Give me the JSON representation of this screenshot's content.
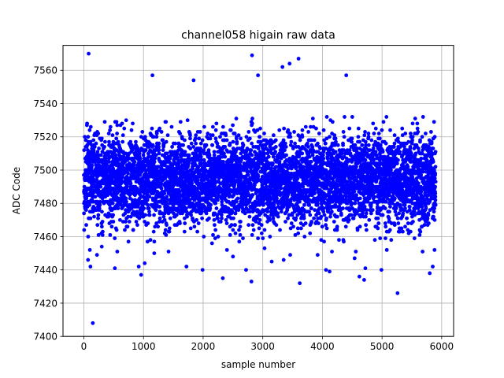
{
  "chart_data": {
    "type": "scatter",
    "title": "channel058 higain raw data",
    "xlabel": "sample number",
    "ylabel": "ADC Code",
    "xlim": [
      -350,
      6200
    ],
    "ylim": [
      7400,
      7575
    ],
    "xticks": [
      0,
      1000,
      2000,
      3000,
      4000,
      5000,
      6000
    ],
    "yticks": [
      7400,
      7420,
      7440,
      7460,
      7480,
      7500,
      7520,
      7540,
      7560
    ],
    "grid": true,
    "marker_color": "#0000ff",
    "series": [
      {
        "points": [
          [
            80,
            7570
          ],
          [
            150,
            7408
          ],
          [
            2820,
            7569
          ],
          [
            3600,
            7567
          ],
          [
            3330,
            7562
          ],
          [
            3450,
            7564
          ],
          [
            1150,
            7557
          ],
          [
            1840,
            7554
          ],
          [
            2920,
            7557
          ],
          [
            4400,
            7557
          ],
          [
            5260,
            7426
          ],
          [
            3620,
            7432
          ],
          [
            2810,
            7433
          ],
          [
            2330,
            7435
          ],
          [
            4700,
            7434
          ],
          [
            4620,
            7436
          ],
          [
            5800,
            7438
          ],
          [
            960,
            7437
          ],
          [
            1990,
            7440
          ],
          [
            4120,
            7439
          ],
          [
            110,
            7442
          ],
          [
            4060,
            7440
          ],
          [
            4720,
            7441
          ],
          [
            5850,
            7442
          ],
          [
            4990,
            7440
          ],
          [
            520,
            7441
          ],
          [
            920,
            7442
          ],
          [
            1020,
            7444
          ],
          [
            1720,
            7442
          ],
          [
            2720,
            7440
          ],
          [
            70,
            7446
          ],
          [
            100,
            7452
          ],
          [
            220,
            7449
          ],
          [
            300,
            7454
          ],
          [
            560,
            7451
          ],
          [
            1180,
            7450
          ],
          [
            1420,
            7451
          ],
          [
            2400,
            7452
          ],
          [
            3030,
            7453
          ],
          [
            3460,
            7449
          ],
          [
            3920,
            7449
          ],
          [
            4160,
            7451
          ],
          [
            4560,
            7451
          ],
          [
            5080,
            7452
          ],
          [
            5680,
            7451
          ],
          [
            5880,
            7452
          ],
          [
            3150,
            7445
          ],
          [
            4540,
            7447
          ],
          [
            3350,
            7446
          ],
          [
            2500,
            7448
          ]
        ]
      }
    ]
  }
}
